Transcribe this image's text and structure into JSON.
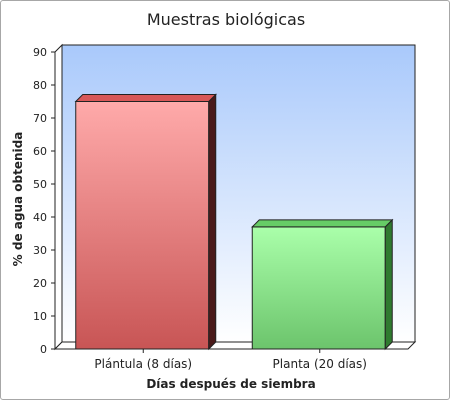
{
  "chart_data": {
    "type": "bar",
    "title": "Muestras biológicas",
    "xlabel": "Días después de siembra",
    "ylabel": "% de agua obtenida",
    "categories": [
      "Plántula (8 días)",
      "Planta (20 días)"
    ],
    "values": [
      75,
      37
    ],
    "ylim": [
      0,
      90
    ],
    "yticks": [
      0,
      10,
      20,
      30,
      40,
      50,
      60,
      70,
      80,
      90
    ],
    "grid": false,
    "style": "3d",
    "colors": [
      "#e06a6a",
      "#88dd88"
    ]
  }
}
